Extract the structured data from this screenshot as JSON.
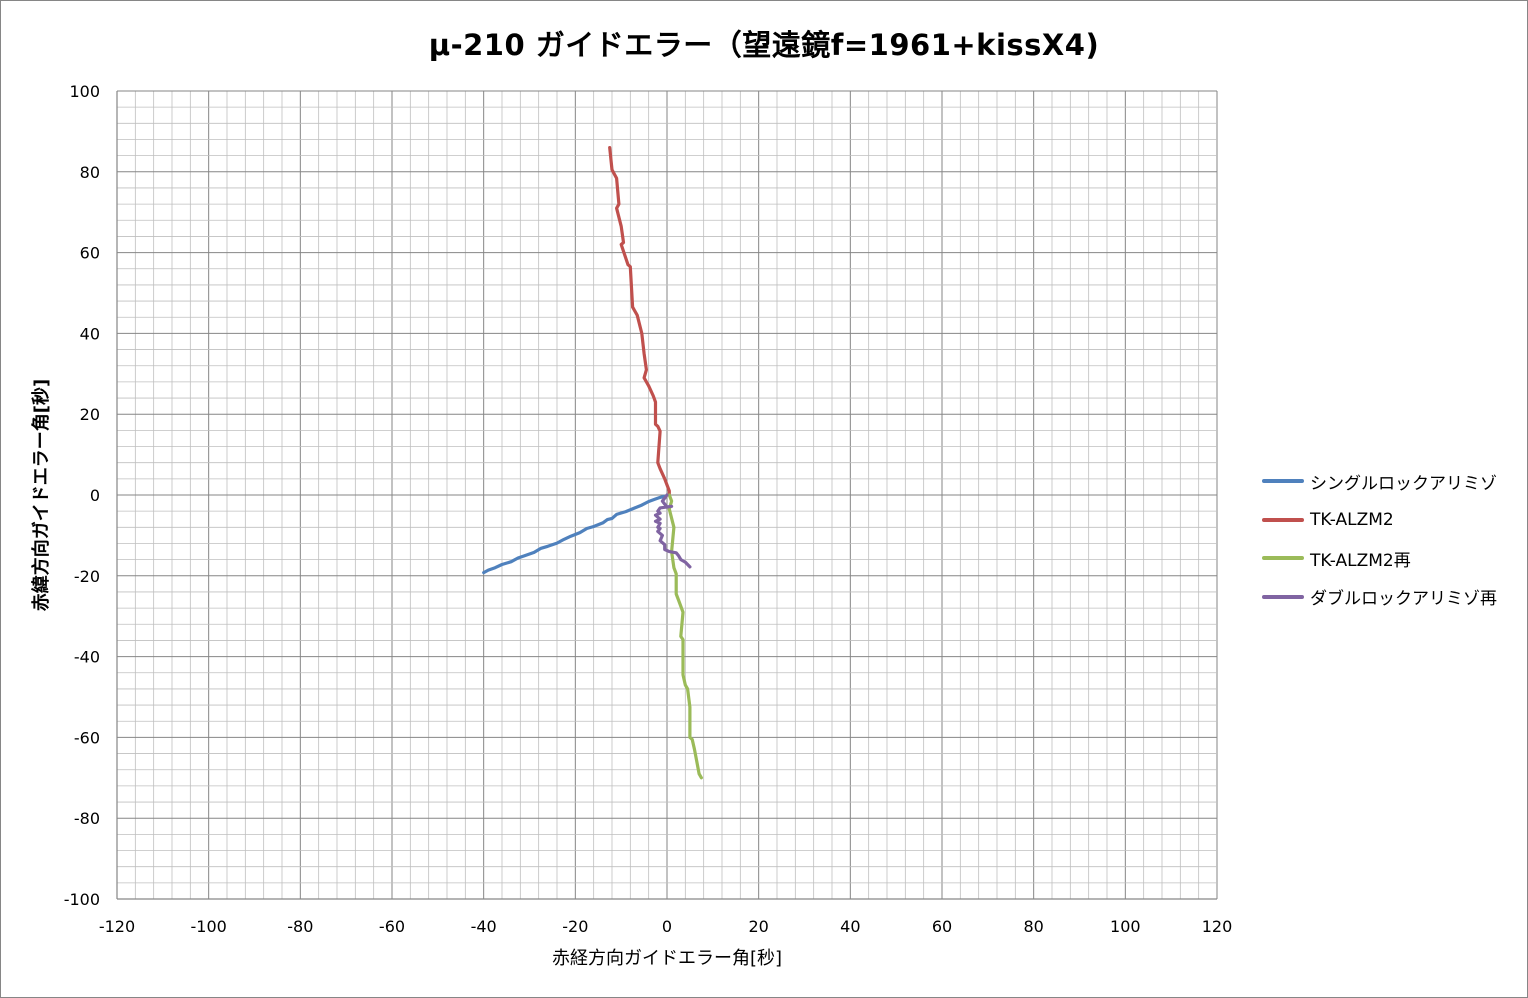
{
  "colors": {
    "series_blue": "#4F81BD",
    "series_red": "#C0504D",
    "series_green": "#9BBB59",
    "series_purple": "#8064A2",
    "grid_major": "#868686",
    "grid_minor": "#BFBFBF"
  },
  "chart_data": {
    "type": "line",
    "title": "μ-210 ガイドエラー（望遠鏡f=1961+kissX4)",
    "xlabel": "赤経方向ガイドエラー角[秒]",
    "ylabel": "赤緯方向ガイドエラー角[秒]",
    "xlim": [
      -120,
      120
    ],
    "ylim": [
      -100,
      100
    ],
    "x_ticks": [
      "-120",
      "-100",
      "-80",
      "-60",
      "-40",
      "-20",
      "0",
      "20",
      "40",
      "60",
      "80",
      "100",
      "120"
    ],
    "y_ticks": [
      "100",
      "80",
      "60",
      "40",
      "20",
      "0",
      "-20",
      "-40",
      "-60",
      "-80",
      "-100"
    ],
    "grid": true,
    "legend_position": "right",
    "series": [
      {
        "name": "シングルロックアリミゾ",
        "color": "#4F81BD",
        "points": [
          [
            -40,
            -19.2
          ],
          [
            -39,
            -18.6
          ],
          [
            -37.5,
            -18
          ],
          [
            -36,
            -17.2
          ],
          [
            -34,
            -16.5
          ],
          [
            -32.5,
            -15.6
          ],
          [
            -31,
            -15
          ],
          [
            -29,
            -14.2
          ],
          [
            -27.5,
            -13.2
          ],
          [
            -26,
            -12.7
          ],
          [
            -24,
            -11.9
          ],
          [
            -22.5,
            -11
          ],
          [
            -21,
            -10.2
          ],
          [
            -19,
            -9.3
          ],
          [
            -17.5,
            -8.3
          ],
          [
            -16,
            -7.8
          ],
          [
            -14,
            -6.9
          ],
          [
            -13,
            -6.1
          ],
          [
            -12,
            -5.8
          ],
          [
            -11,
            -4.8
          ],
          [
            -9,
            -4.1
          ],
          [
            -7,
            -3.2
          ],
          [
            -5.5,
            -2.5
          ],
          [
            -4,
            -1.6
          ],
          [
            -2.5,
            -1
          ],
          [
            -1.5,
            -0.6
          ],
          [
            -0.5,
            -0.3
          ]
        ]
      },
      {
        "name": "TK-ALZM2",
        "color": "#C0504D",
        "points": [
          [
            -12.5,
            86
          ],
          [
            -12,
            80.5
          ],
          [
            -11,
            78.4
          ],
          [
            -10.5,
            72
          ],
          [
            -11,
            71
          ],
          [
            -10,
            66.5
          ],
          [
            -9.5,
            62.5
          ],
          [
            -10,
            62
          ],
          [
            -8.5,
            57
          ],
          [
            -8,
            56.5
          ],
          [
            -7.5,
            46.5
          ],
          [
            -6.5,
            44.5
          ],
          [
            -5.5,
            40
          ],
          [
            -5,
            35
          ],
          [
            -4.5,
            31
          ],
          [
            -5,
            29
          ],
          [
            -4,
            27
          ],
          [
            -3,
            24.5
          ],
          [
            -2.5,
            23
          ],
          [
            -2.5,
            18
          ],
          [
            -2.5,
            17.5
          ],
          [
            -2,
            17
          ],
          [
            -1.5,
            15.8
          ],
          [
            -2,
            8
          ],
          [
            -1.5,
            6.5
          ],
          [
            -0.5,
            4
          ],
          [
            0,
            2.5
          ],
          [
            0.5,
            1
          ],
          [
            0.5,
            0
          ]
        ]
      },
      {
        "name": "TK-ALZM2再",
        "color": "#9BBB59",
        "points": [
          [
            0.5,
            0
          ],
          [
            1,
            -1.5
          ],
          [
            0.5,
            -3.5
          ],
          [
            1.5,
            -8
          ],
          [
            1,
            -14
          ],
          [
            1.5,
            -18
          ],
          [
            2,
            -19.5
          ],
          [
            2,
            -24.5
          ],
          [
            2.5,
            -26
          ],
          [
            3.5,
            -29
          ],
          [
            3,
            -35
          ],
          [
            3.5,
            -35.8
          ],
          [
            3.5,
            -44.5
          ],
          [
            4,
            -47
          ],
          [
            4.5,
            -48
          ],
          [
            5,
            -52.5
          ],
          [
            5,
            -60
          ],
          [
            5.5,
            -60.5
          ],
          [
            6,
            -63
          ],
          [
            6.5,
            -66
          ],
          [
            7,
            -69
          ],
          [
            7.5,
            -70
          ]
        ]
      },
      {
        "name": "ダブルロックアリミゾ再",
        "color": "#8064A2",
        "points": [
          [
            0,
            0
          ],
          [
            -1,
            -1.5
          ],
          [
            0,
            -3
          ],
          [
            1,
            -2.8
          ],
          [
            -1.5,
            -3.2
          ],
          [
            -2,
            -4
          ],
          [
            -1.5,
            -4.5
          ],
          [
            -2.5,
            -5
          ],
          [
            -1.5,
            -6
          ],
          [
            -2.5,
            -6.5
          ],
          [
            -1.5,
            -7
          ],
          [
            -2,
            -8
          ],
          [
            -1.5,
            -8.3
          ],
          [
            -2,
            -9
          ],
          [
            -1,
            -10
          ],
          [
            -1.5,
            -11.3
          ],
          [
            -0.5,
            -12.3
          ],
          [
            -0.5,
            -13.5
          ],
          [
            0.5,
            -14
          ],
          [
            2,
            -14.3
          ],
          [
            2.5,
            -15
          ],
          [
            3,
            -16
          ],
          [
            4,
            -16.6
          ],
          [
            5,
            -17.8
          ]
        ]
      }
    ]
  }
}
